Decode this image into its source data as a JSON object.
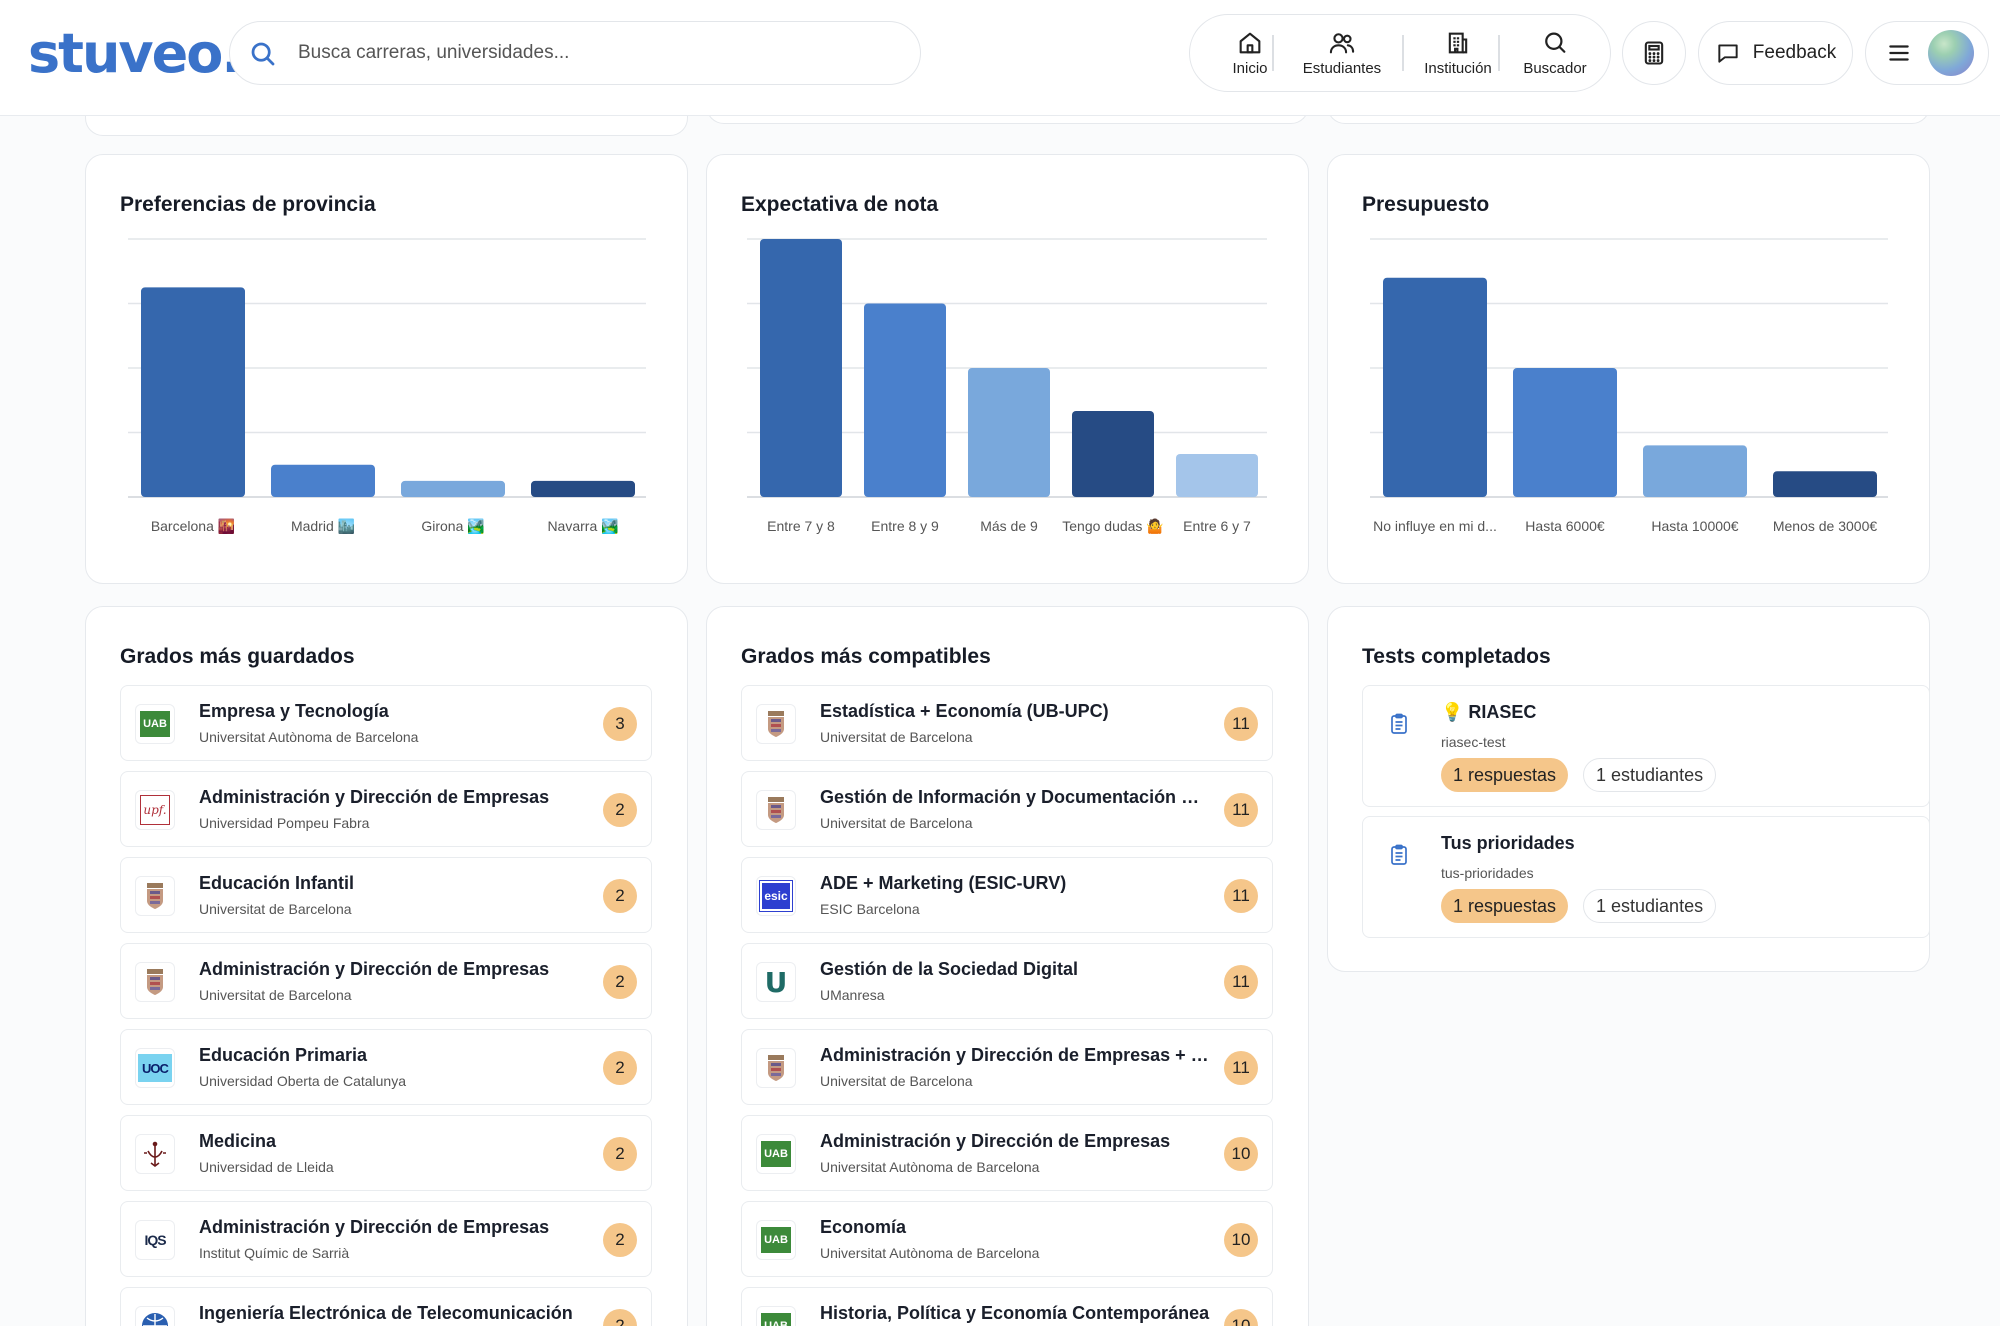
{
  "header": {
    "logo": "stuveo.",
    "search_placeholder": "Busca carreras, universidades...",
    "nav": [
      {
        "label": "Inicio",
        "icon": "home-icon"
      },
      {
        "label": "Estudiantes",
        "icon": "users-icon"
      },
      {
        "label": "Institución",
        "icon": "building-icon"
      },
      {
        "label": "Buscador",
        "icon": "search-icon"
      }
    ],
    "feedback_label": "Feedback"
  },
  "charts": [
    {
      "title": "Preferencias de provincia",
      "chart_data": {
        "type": "bar",
        "categories": [
          "Barcelona 🌇",
          "Madrid 🏙️",
          "Girona 🏞️",
          "Navarra 🏞️"
        ],
        "values": [
          32.5,
          5,
          2.5,
          2.5
        ],
        "ylim": [
          0,
          40
        ],
        "grid": true,
        "colors": [
          "#3567ad",
          "#4a80cc",
          "#79a8dc",
          "#264b84"
        ]
      }
    },
    {
      "title": "Expectativa de nota",
      "chart_data": {
        "type": "bar",
        "categories": [
          "Entre 7 y 8",
          "Entre 8 y 9",
          "Más de 9",
          "Tengo dudas 🤷",
          "Entre 6 y 7"
        ],
        "values": [
          12,
          9,
          6,
          4,
          2
        ],
        "ylim": [
          0,
          12
        ],
        "grid": true,
        "colors": [
          "#3567ad",
          "#4a80cc",
          "#79a8dc",
          "#264b84",
          "#a4c5ea"
        ]
      }
    },
    {
      "title": "Presupuesto",
      "chart_data": {
        "type": "bar",
        "categories": [
          "No influye en mi d...",
          "Hasta 6000€",
          "Hasta 10000€",
          "Menos de 3000€"
        ],
        "values": [
          17,
          10,
          4,
          2
        ],
        "ylim": [
          0,
          20
        ],
        "grid": true,
        "colors": [
          "#3567ad",
          "#4a80cc",
          "#79a8dc",
          "#264b84"
        ]
      }
    }
  ],
  "saved": {
    "title": "Grados más guardados",
    "items": [
      {
        "title": "Empresa y Tecnología",
        "sub": "Universitat Autònoma de Barcelona",
        "count": "3",
        "logo": "uab",
        "logo_text": "UAB"
      },
      {
        "title": "Administración y Dirección de Empresas",
        "sub": "Universidad Pompeu Fabra",
        "count": "2",
        "logo": "upf",
        "logo_text": "upf."
      },
      {
        "title": "Educación Infantil",
        "sub": "Universitat de Barcelona",
        "count": "2",
        "logo": "ub"
      },
      {
        "title": "Administración y Dirección de Empresas",
        "sub": "Universitat de Barcelona",
        "count": "2",
        "logo": "ub"
      },
      {
        "title": "Educación Primaria",
        "sub": "Universidad Oberta de Catalunya",
        "count": "2",
        "logo": "uoc",
        "logo_text": "UOC"
      },
      {
        "title": "Medicina",
        "sub": "Universidad de Lleida",
        "count": "2",
        "logo": "udl"
      },
      {
        "title": "Administración y Dirección de Empresas",
        "sub": "Institut Químic de Sarrià",
        "count": "2",
        "logo": "iqs",
        "logo_text": "IQS"
      },
      {
        "title": "Ingeniería Electrónica de Telecomunicación",
        "sub": "",
        "count": "2",
        "logo": "globe"
      }
    ]
  },
  "compatible": {
    "title": "Grados más compatibles",
    "items": [
      {
        "title": "Estadística + Economía (UB-UPC)",
        "sub": "Universitat de Barcelona",
        "count": "11",
        "logo": "ub"
      },
      {
        "title": "Gestión de Información y Documentación Digital",
        "sub": "Universitat de Barcelona",
        "count": "11",
        "logo": "ub"
      },
      {
        "title": "ADE + Marketing (ESIC-URV)",
        "sub": "ESIC Barcelona",
        "count": "11",
        "logo": "esic",
        "logo_text": "esic"
      },
      {
        "title": "Gestión de la Sociedad Digital",
        "sub": "UManresa",
        "count": "11",
        "logo": "um",
        "logo_text": "U"
      },
      {
        "title": "Administración y Dirección de Empresas + Derecho",
        "sub": "Universitat de Barcelona",
        "count": "11",
        "logo": "ub"
      },
      {
        "title": "Administración y Dirección de Empresas",
        "sub": "Universitat Autònoma de Barcelona",
        "count": "10",
        "logo": "uab",
        "logo_text": "UAB"
      },
      {
        "title": "Economía",
        "sub": "Universitat Autònoma de Barcelona",
        "count": "10",
        "logo": "uab",
        "logo_text": "UAB"
      },
      {
        "title": "Historia, Política y Economía Contemporánea",
        "sub": "",
        "count": "10",
        "logo": "uab",
        "logo_text": "UAB"
      }
    ]
  },
  "tests": {
    "title": "Tests completados",
    "items": [
      {
        "title": "💡 RIASEC",
        "slug": "riasec-test",
        "responses": "1 respuestas",
        "students": "1 estudiantes"
      },
      {
        "title": "Tus prioridades",
        "slug": "tus-prioridades",
        "responses": "1 respuestas",
        "students": "1 estudiantes"
      }
    ]
  }
}
